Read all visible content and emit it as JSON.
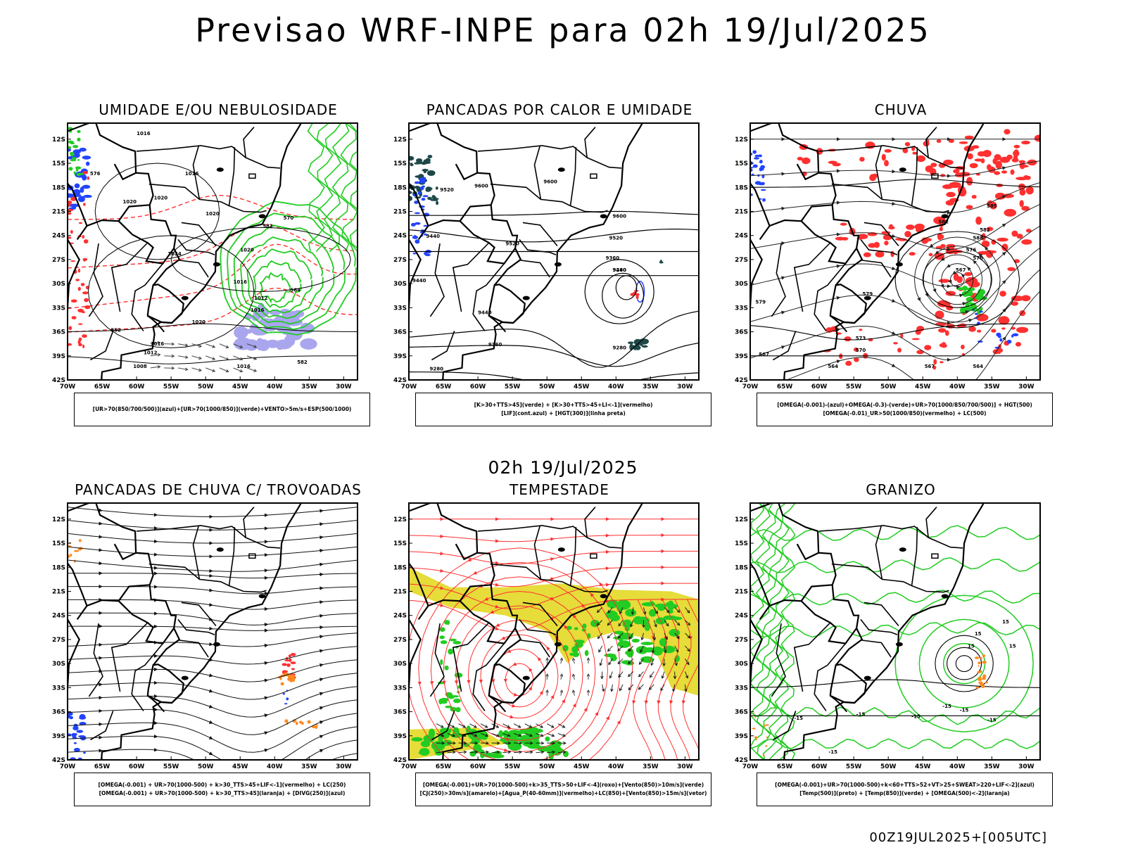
{
  "title": "Previsao WRF-INPE  para 02h 19/Jul/2025",
  "mid_title": "02h 19/Jul/2025",
  "footer": "00Z19JUL2025+[005UTC]",
  "axes": {
    "lat_labels": [
      "12S",
      "15S",
      "18S",
      "21S",
      "24S",
      "27S",
      "30S",
      "33S",
      "36S",
      "39S",
      "42S"
    ],
    "lon_labels": [
      "70W",
      "65W",
      "60W",
      "55W",
      "50W",
      "45W",
      "40W",
      "35W",
      "30W"
    ]
  },
  "colors": {
    "green": "#22cc22",
    "red": "#ff3030",
    "blue": "#2244ff",
    "yellow": "#e6dc3a",
    "orange": "#ff8a20",
    "dark_teal": "#1e4848",
    "lavender": "#a9a6ee"
  },
  "panels": [
    {
      "id": "umidade",
      "title": "UMIDADE E/OU NEBULOSIDADE",
      "legend": [
        "[UR>70(850/700/500)](azul)+[UR>70(1000/850)](verde)+VENTO>5m/s+ESP(500/1000)"
      ],
      "contour_labels": [
        "1016",
        "1016",
        "1020",
        "1020",
        "1024",
        "1020",
        "1020",
        "1012",
        "1016",
        "1016",
        "1020",
        "1016",
        "1012",
        "1008",
        "1016",
        "570",
        "576",
        "582",
        "564",
        "552",
        "582"
      ]
    },
    {
      "id": "pancadas-calor",
      "title": "PANCADAS POR CALOR E UMIDADE",
      "legend": [
        "[K>30+TTS>45](verde) + [K>30+TTS>45+LI<-1](vermelho)",
        "[LIF](cont.azul) + [HGT(300)](linha preta)"
      ],
      "contour_labels": [
        "9520",
        "9600",
        "9600",
        "9600",
        "9520",
        "9440",
        "9520",
        "9440",
        "9360",
        "9280",
        "9440",
        "9360",
        "9280",
        "9280",
        "9440"
      ]
    },
    {
      "id": "chuva",
      "title": "CHUVA",
      "legend": [
        "[OMEGA(-0.001)-(azul)+OMEGA(-0.3)-(verde)+UR>70(1000/850/700/500)] + HGT(500)",
        "[OMEGA(-0.01)_UR>50(1000/850)(vermelho) + LC(500)"
      ],
      "contour_labels": [
        "588",
        "582",
        "576",
        "576",
        "567",
        "579",
        "579",
        "573",
        "570",
        "567",
        "564",
        "564",
        "567",
        "582",
        "585"
      ]
    },
    {
      "id": "pancadas-trovoadas",
      "title": "PANCADAS DE CHUVA C/ TROVOADAS",
      "legend": [
        "[OMEGA(-0.001) + UR>70(1000-500) + k>30_TTS>45+LIF<-1](vermelho) + LC(250)",
        "[OMEGA(-0.001) + UR>70(1000-500) + k>30_TTS>45](laranja) + [DIVG(250)](azul)"
      ],
      "contour_labels": []
    },
    {
      "id": "tempestade",
      "title": "TEMPESTADE",
      "legend": [
        "[OMEGA(-0.001)+UR>70(1000-500)+k>35_TTS>50+LIF<-4](roxo)+[Vento(850)>10m/s](verde)",
        "[CJ(250)>30m/s](amarelo)+[Agua_P(40-60mm)](vermelho)+LC(850)+[Vento(850)>15m/s](vetor)"
      ],
      "contour_labels": []
    },
    {
      "id": "granizo",
      "title": "GRANIZO",
      "legend": [
        "[OMEGA(-0.001)+UR>70(1000-500)+k<60+TTS>52+VT>25+SWEAT>220+LIF<-2](azul)",
        "[Temp(500)](preto) + [Temp(850)](verde) + [OMEGA(500)<-2](laranja)"
      ],
      "contour_labels": [
        "-15",
        "-15",
        "-15",
        "-15",
        "-15",
        "-15",
        "-15",
        "15",
        "15",
        "15",
        "15"
      ]
    }
  ]
}
